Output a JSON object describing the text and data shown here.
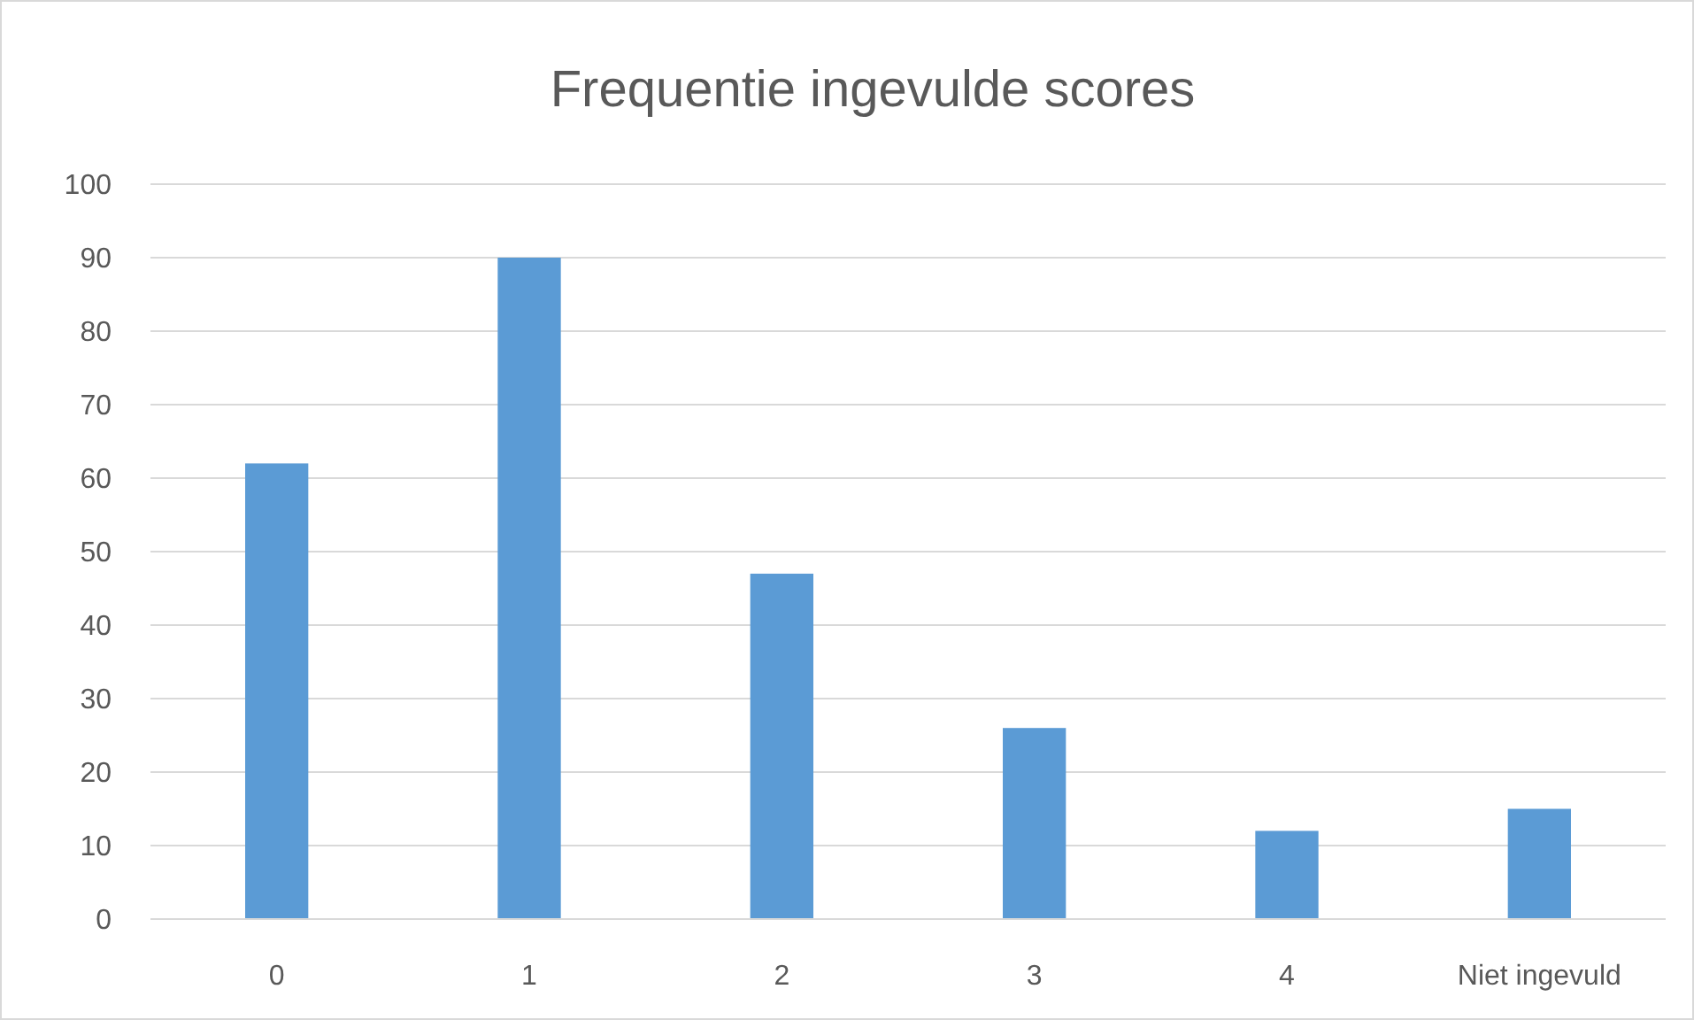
{
  "chart_data": {
    "type": "bar",
    "title": "Frequentie ingevulde scores",
    "categories": [
      "0",
      "1",
      "2",
      "3",
      "4",
      "Niet ingevuld"
    ],
    "values": [
      62,
      90,
      47,
      26,
      12,
      15
    ],
    "color": "#5b9bd5",
    "ylim": [
      0,
      100
    ],
    "yticks": [
      0,
      10,
      20,
      30,
      40,
      50,
      60,
      70,
      80,
      90,
      100
    ],
    "grid": "y"
  }
}
